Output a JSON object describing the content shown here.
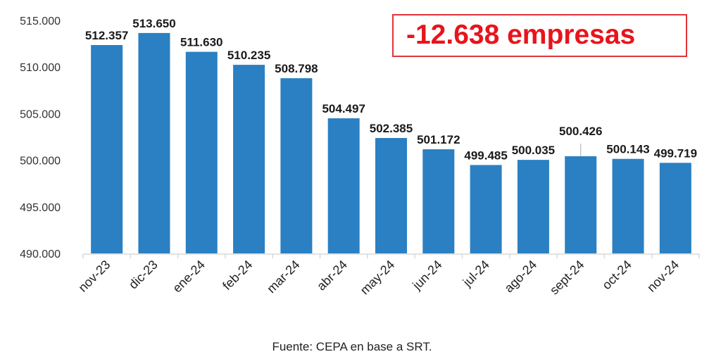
{
  "chart_data": {
    "type": "bar",
    "categories": [
      "nov-23",
      "dic-23",
      "ene-24",
      "feb-24",
      "mar-24",
      "abr-24",
      "may-24",
      "jun-24",
      "jul-24",
      "ago-24",
      "sept-24",
      "oct-24",
      "nov-24"
    ],
    "values": [
      512357,
      513650,
      511630,
      510235,
      508798,
      504497,
      502385,
      501172,
      499485,
      500035,
      500426,
      500143,
      499719
    ],
    "data_labels": [
      "512.357",
      "513.650",
      "511.630",
      "510.235",
      "508.798",
      "504.497",
      "502.385",
      "501.172",
      "499.485",
      "500.035",
      "500.426",
      "500.143",
      "499.719"
    ],
    "ylim": [
      490000,
      515000
    ],
    "yticks": [
      490000,
      495000,
      500000,
      505000,
      510000,
      515000
    ],
    "ytick_labels": [
      "490.000",
      "495.000",
      "500.000",
      "505.000",
      "510.000",
      "515.000"
    ],
    "grid": false,
    "bar_color": "#2a80c2",
    "title": "",
    "xlabel": "",
    "ylabel": ""
  },
  "annotation": {
    "text": "-12.638 empresas",
    "color": "#e8141c"
  },
  "source": "Fuente: CEPA en base a SRT."
}
